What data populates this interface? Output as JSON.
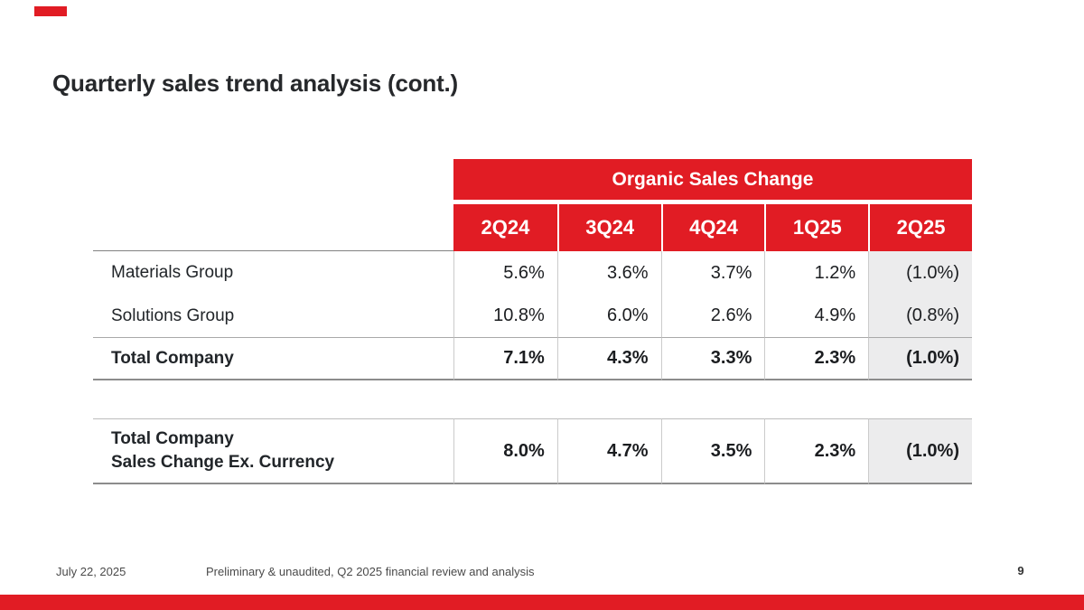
{
  "slide": {
    "title": "Quarterly sales trend analysis (cont.)",
    "footer": {
      "date": "July 22, 2025",
      "note": "Preliminary & unaudited, Q2 2025 financial review and analysis",
      "page": "9"
    }
  },
  "colors": {
    "brand_red": "#E11C24",
    "highlight_column_bg": "#ECECED",
    "text_dark": "#212529"
  },
  "table": {
    "banner": "Organic Sales Change",
    "columns": [
      "2Q24",
      "3Q24",
      "4Q24",
      "1Q25",
      "2Q25"
    ],
    "highlighted_column": "2Q25",
    "rows": [
      {
        "label": "Materials Group",
        "values": [
          "5.6%",
          "3.6%",
          "3.7%",
          "1.2%",
          "(1.0%)"
        ]
      },
      {
        "label": "Solutions Group",
        "values": [
          "10.8%",
          "6.0%",
          "2.6%",
          "4.9%",
          "(0.8%)"
        ]
      },
      {
        "label": "Total Company",
        "values": [
          "7.1%",
          "4.3%",
          "3.3%",
          "2.3%",
          "(1.0%)"
        ]
      }
    ],
    "ex_currency_row": {
      "label_line1": "Total Company",
      "label_line2": "Sales Change Ex. Currency",
      "values": [
        "8.0%",
        "4.7%",
        "3.5%",
        "2.3%",
        "(1.0%)"
      ]
    }
  },
  "chart_data": {
    "type": "table",
    "title": "Organic Sales Change",
    "categories": [
      "2Q24",
      "3Q24",
      "4Q24",
      "1Q25",
      "2Q25"
    ],
    "series": [
      {
        "name": "Materials Group",
        "values": [
          5.6,
          3.6,
          3.7,
          1.2,
          -1.0
        ]
      },
      {
        "name": "Solutions Group",
        "values": [
          10.8,
          6.0,
          2.6,
          4.9,
          -0.8
        ]
      },
      {
        "name": "Total Company",
        "values": [
          7.1,
          4.3,
          3.3,
          2.3,
          -1.0
        ]
      },
      {
        "name": "Total Company Sales Change Ex. Currency",
        "values": [
          8.0,
          4.7,
          3.5,
          2.3,
          -1.0
        ]
      }
    ]
  }
}
